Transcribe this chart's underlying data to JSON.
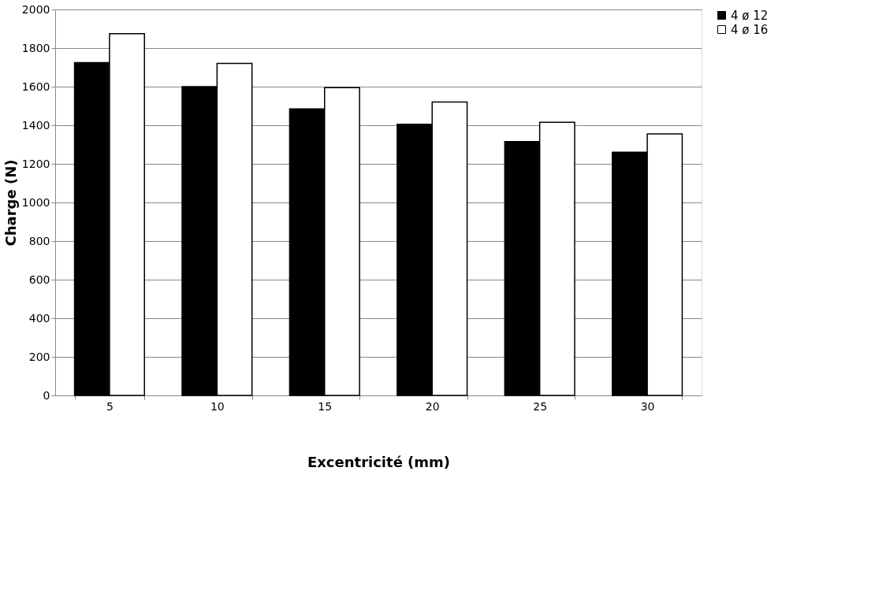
{
  "chart_data": {
    "type": "bar",
    "xlabel": "Excentricité (mm)",
    "ylabel": "Charge  (N)",
    "categories": [
      "5",
      "10",
      "15",
      "20",
      "25",
      "30"
    ],
    "series": [
      {
        "name": "4 ø 12",
        "color": "#000000",
        "values": [
          1725,
          1600,
          1485,
          1405,
          1315,
          1260
        ]
      },
      {
        "name": "4 ø 16",
        "color": "#ffffff",
        "values": [
          1875,
          1720,
          1595,
          1520,
          1415,
          1355
        ]
      }
    ],
    "ylim": [
      0,
      2000
    ],
    "yticks": [
      0,
      200,
      400,
      600,
      800,
      1000,
      1200,
      1400,
      1600,
      1800,
      2000
    ],
    "grid": "y",
    "legend": "right"
  }
}
